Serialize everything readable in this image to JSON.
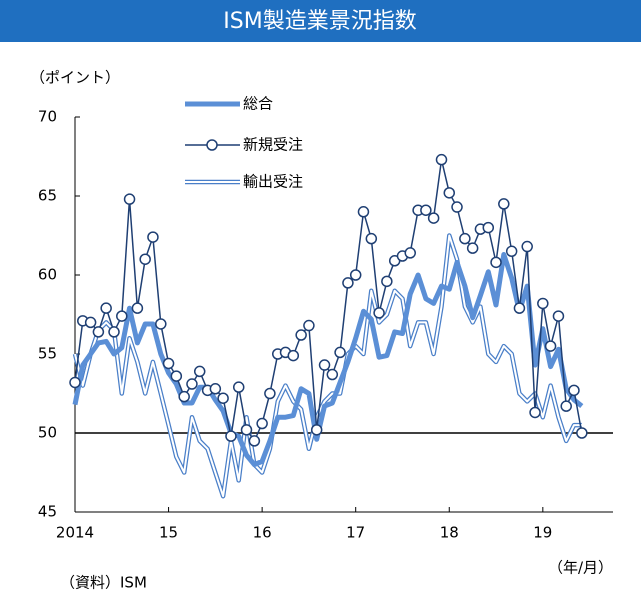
{
  "chart_data": {
    "type": "line",
    "title": "ISM製造業景況指数",
    "y_label": "（ポイント）",
    "x_label": "（年/月）",
    "source": "（資料）ISM",
    "x": [
      2014.0,
      2014.083,
      2014.167,
      2014.25,
      2014.333,
      2014.417,
      2014.5,
      2014.583,
      2014.667,
      2014.75,
      2014.833,
      2014.917,
      2015.0,
      2015.083,
      2015.167,
      2015.25,
      2015.333,
      2015.417,
      2015.5,
      2015.583,
      2015.667,
      2015.75,
      2015.833,
      2015.917,
      2016.0,
      2016.083,
      2016.167,
      2016.25,
      2016.333,
      2016.417,
      2016.5,
      2016.583,
      2016.667,
      2016.75,
      2016.833,
      2016.917,
      2017.0,
      2017.083,
      2017.167,
      2017.25,
      2017.333,
      2017.417,
      2017.5,
      2017.583,
      2017.667,
      2017.75,
      2017.833,
      2017.917,
      2018.0,
      2018.083,
      2018.167,
      2018.25,
      2018.333,
      2018.417,
      2018.5,
      2018.583,
      2018.667,
      2018.75,
      2018.833,
      2018.917,
      2019.0,
      2019.083,
      2019.167,
      2019.25,
      2019.333,
      2019.417
    ],
    "series": [
      {
        "name": "総合",
        "color": "#5b8fd6",
        "style": "thick",
        "values": [
          51.8,
          54.3,
          55.0,
          55.7,
          55.8,
          55.0,
          55.4,
          57.9,
          55.7,
          56.9,
          56.9,
          55.0,
          53.8,
          53.1,
          51.9,
          51.9,
          52.9,
          52.9,
          52.1,
          51.4,
          50.0,
          49.8,
          48.6,
          48.0,
          48.2,
          49.5,
          51.0,
          51.0,
          51.1,
          52.8,
          52.5,
          49.6,
          51.7,
          51.9,
          53.2,
          54.5,
          56.0,
          57.7,
          57.2,
          54.8,
          54.9,
          56.4,
          56.3,
          58.8,
          60.0,
          58.5,
          58.2,
          59.3,
          59.1,
          60.8,
          59.3,
          57.3,
          58.7,
          60.2,
          58.1,
          61.3,
          59.8,
          57.7,
          59.3,
          54.3,
          56.6,
          54.2,
          55.3,
          52.8,
          52.1,
          51.7
        ]
      },
      {
        "name": "新規受注",
        "color": "#1f3f73",
        "style": "markers",
        "values": [
          53.2,
          57.1,
          57.0,
          56.4,
          57.9,
          56.4,
          57.4,
          64.8,
          57.9,
          61.0,
          62.4,
          56.9,
          54.4,
          53.6,
          52.3,
          53.1,
          53.9,
          52.7,
          52.8,
          52.2,
          49.8,
          52.9,
          50.2,
          49.5,
          50.6,
          52.5,
          55.0,
          55.1,
          54.9,
          56.2,
          56.8,
          50.2,
          54.3,
          53.7,
          55.1,
          59.5,
          60.0,
          64.0,
          62.3,
          57.6,
          59.6,
          60.9,
          61.2,
          61.4,
          64.1,
          64.1,
          63.6,
          67.3,
          65.2,
          64.3,
          62.3,
          61.7,
          62.9,
          63.0,
          60.8,
          64.5,
          61.5,
          57.9,
          61.8,
          51.3,
          58.2,
          55.5,
          57.4,
          51.7,
          52.7,
          50.0
        ]
      },
      {
        "name": "輸出受注",
        "color": "#4a7fc8",
        "style": "double",
        "values": [
          55.0,
          53.0,
          55.0,
          56.5,
          57.0,
          56.5,
          52.5,
          56.0,
          54.5,
          52.5,
          54.5,
          52.5,
          50.5,
          48.5,
          47.5,
          51.0,
          49.5,
          49.0,
          47.5,
          46.0,
          49.5,
          47.0,
          51.0,
          48.0,
          47.5,
          49.0,
          52.0,
          53.0,
          52.0,
          51.5,
          49.0,
          51.0,
          52.0,
          52.5,
          52.5,
          55.0,
          55.5,
          55.0,
          59.0,
          57.0,
          57.5,
          59.0,
          58.5,
          55.5,
          57.0,
          57.0,
          55.0,
          58.0,
          62.5,
          61.0,
          58.0,
          57.0,
          58.0,
          55.0,
          54.5,
          55.5,
          55.0,
          52.5,
          52.0,
          52.5,
          51.0,
          53.0,
          51.0,
          49.5,
          50.5,
          50.5
        ]
      }
    ],
    "xlim": [
      2014,
      2019.75
    ],
    "xticks": [
      {
        "value": 2014,
        "label": "2014"
      },
      {
        "value": 2015,
        "label": "15"
      },
      {
        "value": 2016,
        "label": "16"
      },
      {
        "value": 2017,
        "label": "17"
      },
      {
        "value": 2018,
        "label": "18"
      },
      {
        "value": 2019,
        "label": "19"
      }
    ],
    "ylim": [
      45,
      70
    ],
    "yticks": [
      45,
      50,
      55,
      60,
      65,
      70
    ],
    "hline": 50,
    "grid": false
  }
}
